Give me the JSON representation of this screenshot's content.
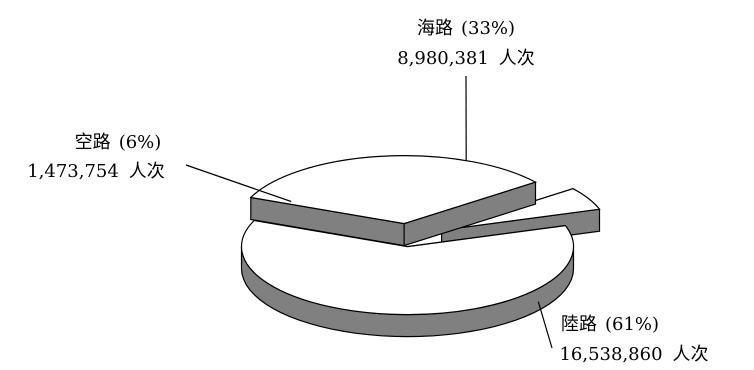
{
  "chart_data": {
    "type": "pie",
    "style": "3d-exploded",
    "title": "",
    "slices": [
      {
        "name": "陸路",
        "percent_label": "(61%)",
        "value": 16538860,
        "value_label": "16,538,860",
        "unit": "人次",
        "color": "#ffffff",
        "side_color": "#808080"
      },
      {
        "name": "海路",
        "percent_label": "(33%)",
        "value": 8980381,
        "value_label": "8,980,381",
        "unit": "人次",
        "color": "#ffffff",
        "side_color": "#808080"
      },
      {
        "name": "空路",
        "percent_label": "(6%)",
        "value": 1473754,
        "value_label": "1,473,754",
        "unit": "人次",
        "color": "#ffffff",
        "side_color": "#808080"
      }
    ]
  }
}
